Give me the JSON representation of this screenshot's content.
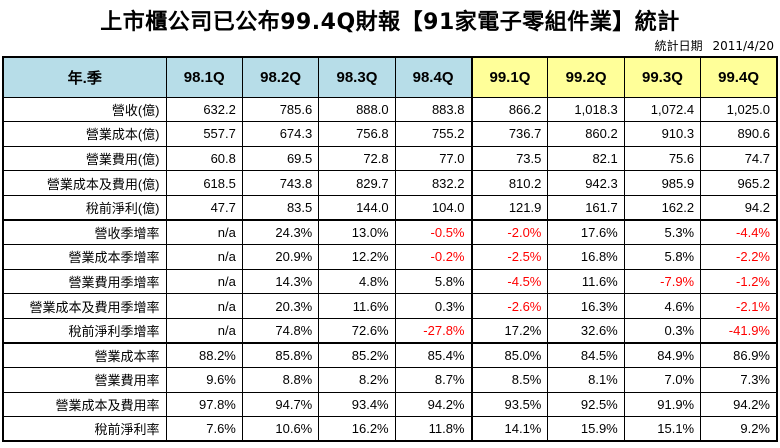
{
  "title": "上市櫃公司已公布99.4Q財報【91家電子零組件業】統計",
  "date_label": "統計日期",
  "date_value": "2011/4/20",
  "colors": {
    "header_98": "#b7dde8",
    "header_99": "#ffff99",
    "negative": "#ff0000"
  },
  "chart_data": {
    "type": "table",
    "corner_label": "年.季",
    "columns": [
      "98.1Q",
      "98.2Q",
      "98.3Q",
      "98.4Q",
      "99.1Q",
      "99.2Q",
      "99.3Q",
      "99.4Q"
    ],
    "rows": [
      {
        "label": "營收(億)",
        "values": [
          "632.2",
          "785.6",
          "888.0",
          "883.8",
          "866.2",
          "1,018.3",
          "1,072.4",
          "1,025.0"
        ]
      },
      {
        "label": "營業成本(億)",
        "values": [
          "557.7",
          "674.3",
          "756.8",
          "755.2",
          "736.7",
          "860.2",
          "910.3",
          "890.6"
        ]
      },
      {
        "label": "營業費用(億)",
        "values": [
          "60.8",
          "69.5",
          "72.8",
          "77.0",
          "73.5",
          "82.1",
          "75.6",
          "74.7"
        ]
      },
      {
        "label": "營業成本及費用(億)",
        "values": [
          "618.5",
          "743.8",
          "829.7",
          "832.2",
          "810.2",
          "942.3",
          "985.9",
          "965.2"
        ]
      },
      {
        "label": "稅前淨利(億)",
        "values": [
          "47.7",
          "83.5",
          "144.0",
          "104.0",
          "121.9",
          "161.7",
          "162.2",
          "94.2"
        ]
      },
      {
        "label": "營收季增率",
        "values": [
          "n/a",
          "24.3%",
          "13.0%",
          "-0.5%",
          "-2.0%",
          "17.6%",
          "5.3%",
          "-4.4%"
        ]
      },
      {
        "label": "營業成本季增率",
        "values": [
          "n/a",
          "20.9%",
          "12.2%",
          "-0.2%",
          "-2.5%",
          "16.8%",
          "5.8%",
          "-2.2%"
        ]
      },
      {
        "label": "營業費用季增率",
        "values": [
          "n/a",
          "14.3%",
          "4.8%",
          "5.8%",
          "-4.5%",
          "11.6%",
          "-7.9%",
          "-1.2%"
        ]
      },
      {
        "label": "營業成本及費用季增率",
        "values": [
          "n/a",
          "20.3%",
          "11.6%",
          "0.3%",
          "-2.6%",
          "16.3%",
          "4.6%",
          "-2.1%"
        ]
      },
      {
        "label": "稅前淨利季增率",
        "values": [
          "n/a",
          "74.8%",
          "72.6%",
          "-27.8%",
          "17.2%",
          "32.6%",
          "0.3%",
          "-41.9%"
        ]
      },
      {
        "label": "營業成本率",
        "values": [
          "88.2%",
          "85.8%",
          "85.2%",
          "85.4%",
          "85.0%",
          "84.5%",
          "84.9%",
          "86.9%"
        ]
      },
      {
        "label": "營業費用率",
        "values": [
          "9.6%",
          "8.8%",
          "8.2%",
          "8.7%",
          "8.5%",
          "8.1%",
          "7.0%",
          "7.3%"
        ]
      },
      {
        "label": "營業成本及費用率",
        "values": [
          "97.8%",
          "94.7%",
          "93.4%",
          "94.2%",
          "93.5%",
          "92.5%",
          "91.9%",
          "94.2%"
        ]
      },
      {
        "label": "稅前淨利率",
        "values": [
          "7.6%",
          "10.6%",
          "16.2%",
          "11.8%",
          "14.1%",
          "15.9%",
          "15.1%",
          "9.2%"
        ]
      }
    ]
  }
}
